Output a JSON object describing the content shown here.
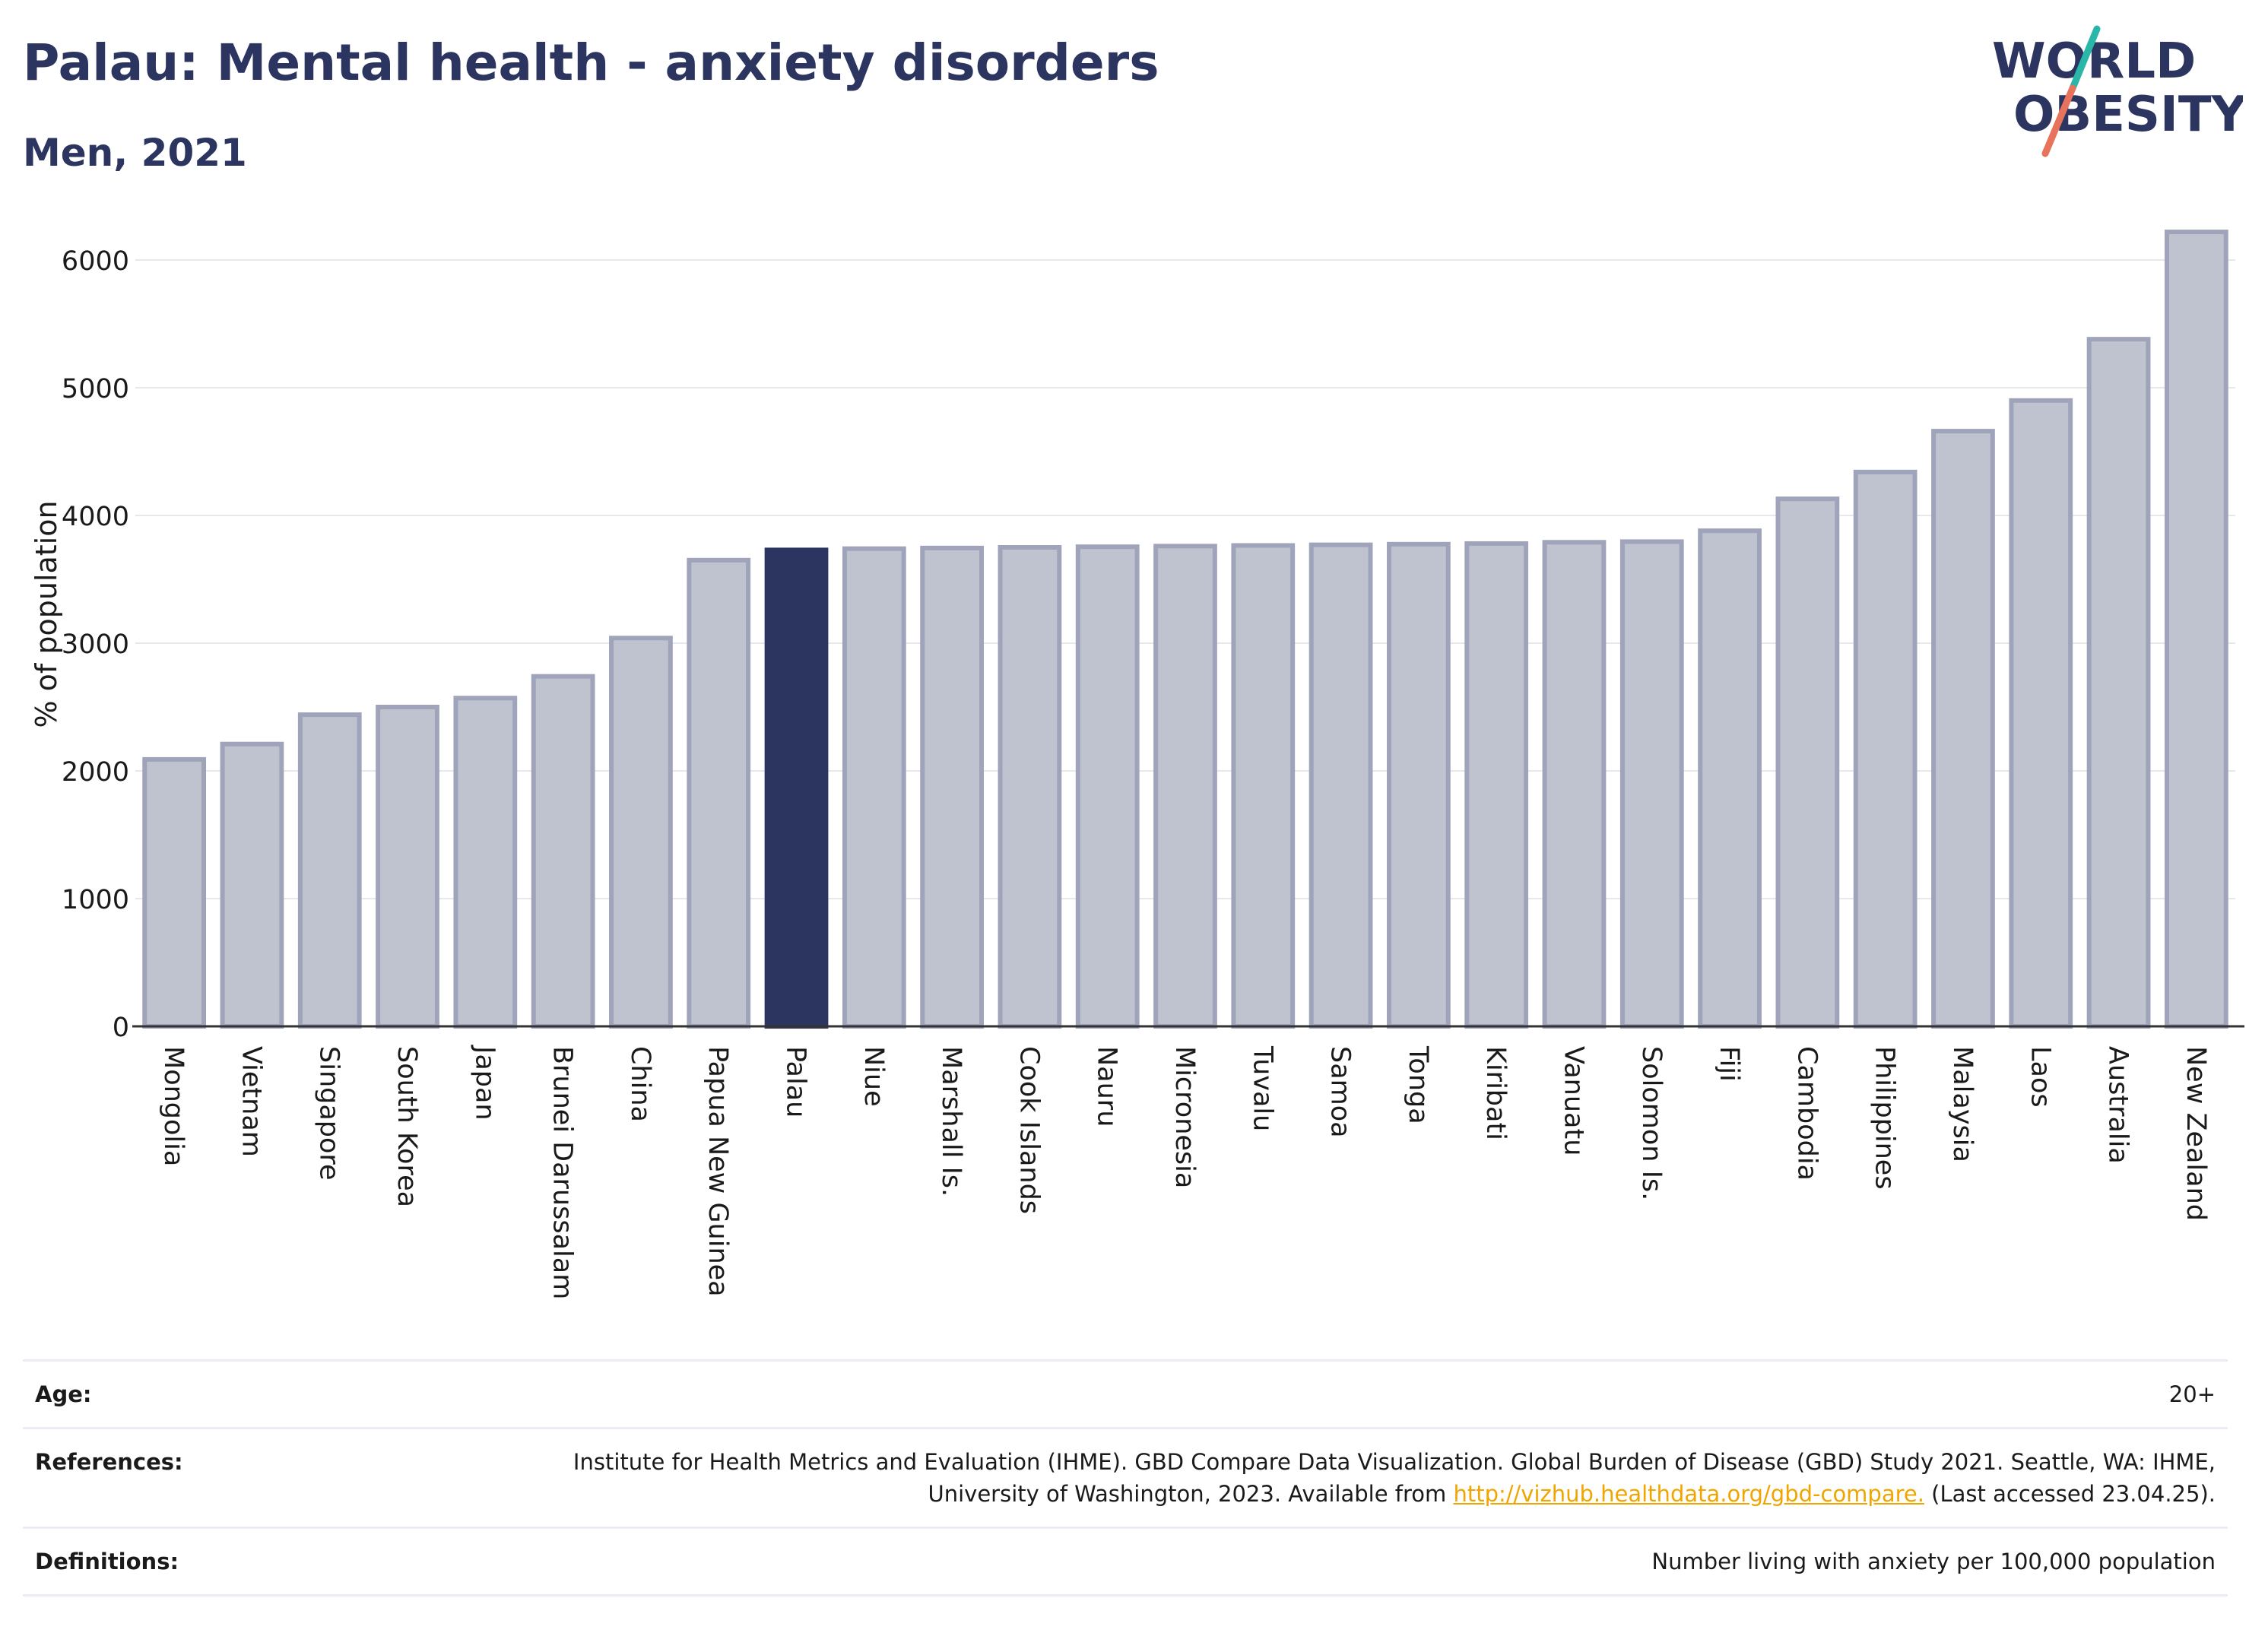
{
  "header": {
    "title": "Palau: Mental health - anxiety disorders",
    "subtitle": "Men, 2021"
  },
  "logo": {
    "line1": "WORLD",
    "line2": "OBESITY",
    "icon": "world-obesity-logo"
  },
  "chart_data": {
    "type": "bar",
    "ylabel": "% of population",
    "xlabel": "",
    "ylim": [
      0,
      6250
    ],
    "yticks": [
      0,
      1000,
      2000,
      3000,
      4000,
      5000,
      6000
    ],
    "grid": true,
    "highlight": "Palau",
    "colors": {
      "bar": "#bfc2cf",
      "bar_border": "#9fa4ba",
      "highlight": "#2b3560",
      "grid": "#e6e8ee",
      "axis": "#333333"
    },
    "categories": [
      "Mongolia",
      "Vietnam",
      "Singapore",
      "South Korea",
      "Japan",
      "Brunei Darussalam",
      "China",
      "Papua New Guinea",
      "Palau",
      "Niue",
      "Marshall Is.",
      "Cook Islands",
      "Nauru",
      "Micronesia",
      "Tuvalu",
      "Samoa",
      "Tonga",
      "Kiribati",
      "Vanuatu",
      "Solomon Is.",
      "Fiji",
      "Cambodia",
      "Philippines",
      "Malaysia",
      "Laos",
      "Australia",
      "New Zealand"
    ],
    "values": [
      2090,
      2210,
      2440,
      2500,
      2570,
      2740,
      3040,
      3650,
      3730,
      3740,
      3745,
      3750,
      3755,
      3760,
      3765,
      3770,
      3775,
      3780,
      3790,
      3795,
      3880,
      4130,
      4340,
      4660,
      4900,
      5380,
      6220
    ]
  },
  "footer": {
    "age_label": "Age:",
    "age_value": "20+",
    "references_label": "References:",
    "references_text": "Institute for Health Metrics and Evaluation (IHME). GBD Compare Data Visualization. Global Burden of Disease (GBD) Study 2021. Seattle, WA: IHME, University of Washington, 2023. Available from ",
    "references_link": "http://vizhub.healthdata.org/gbd-compare.",
    "references_tail": " (Last accessed 23.04.25).",
    "definitions_label": "Definitions:",
    "definitions_value": "Number living with anxiety per 100,000 population"
  }
}
